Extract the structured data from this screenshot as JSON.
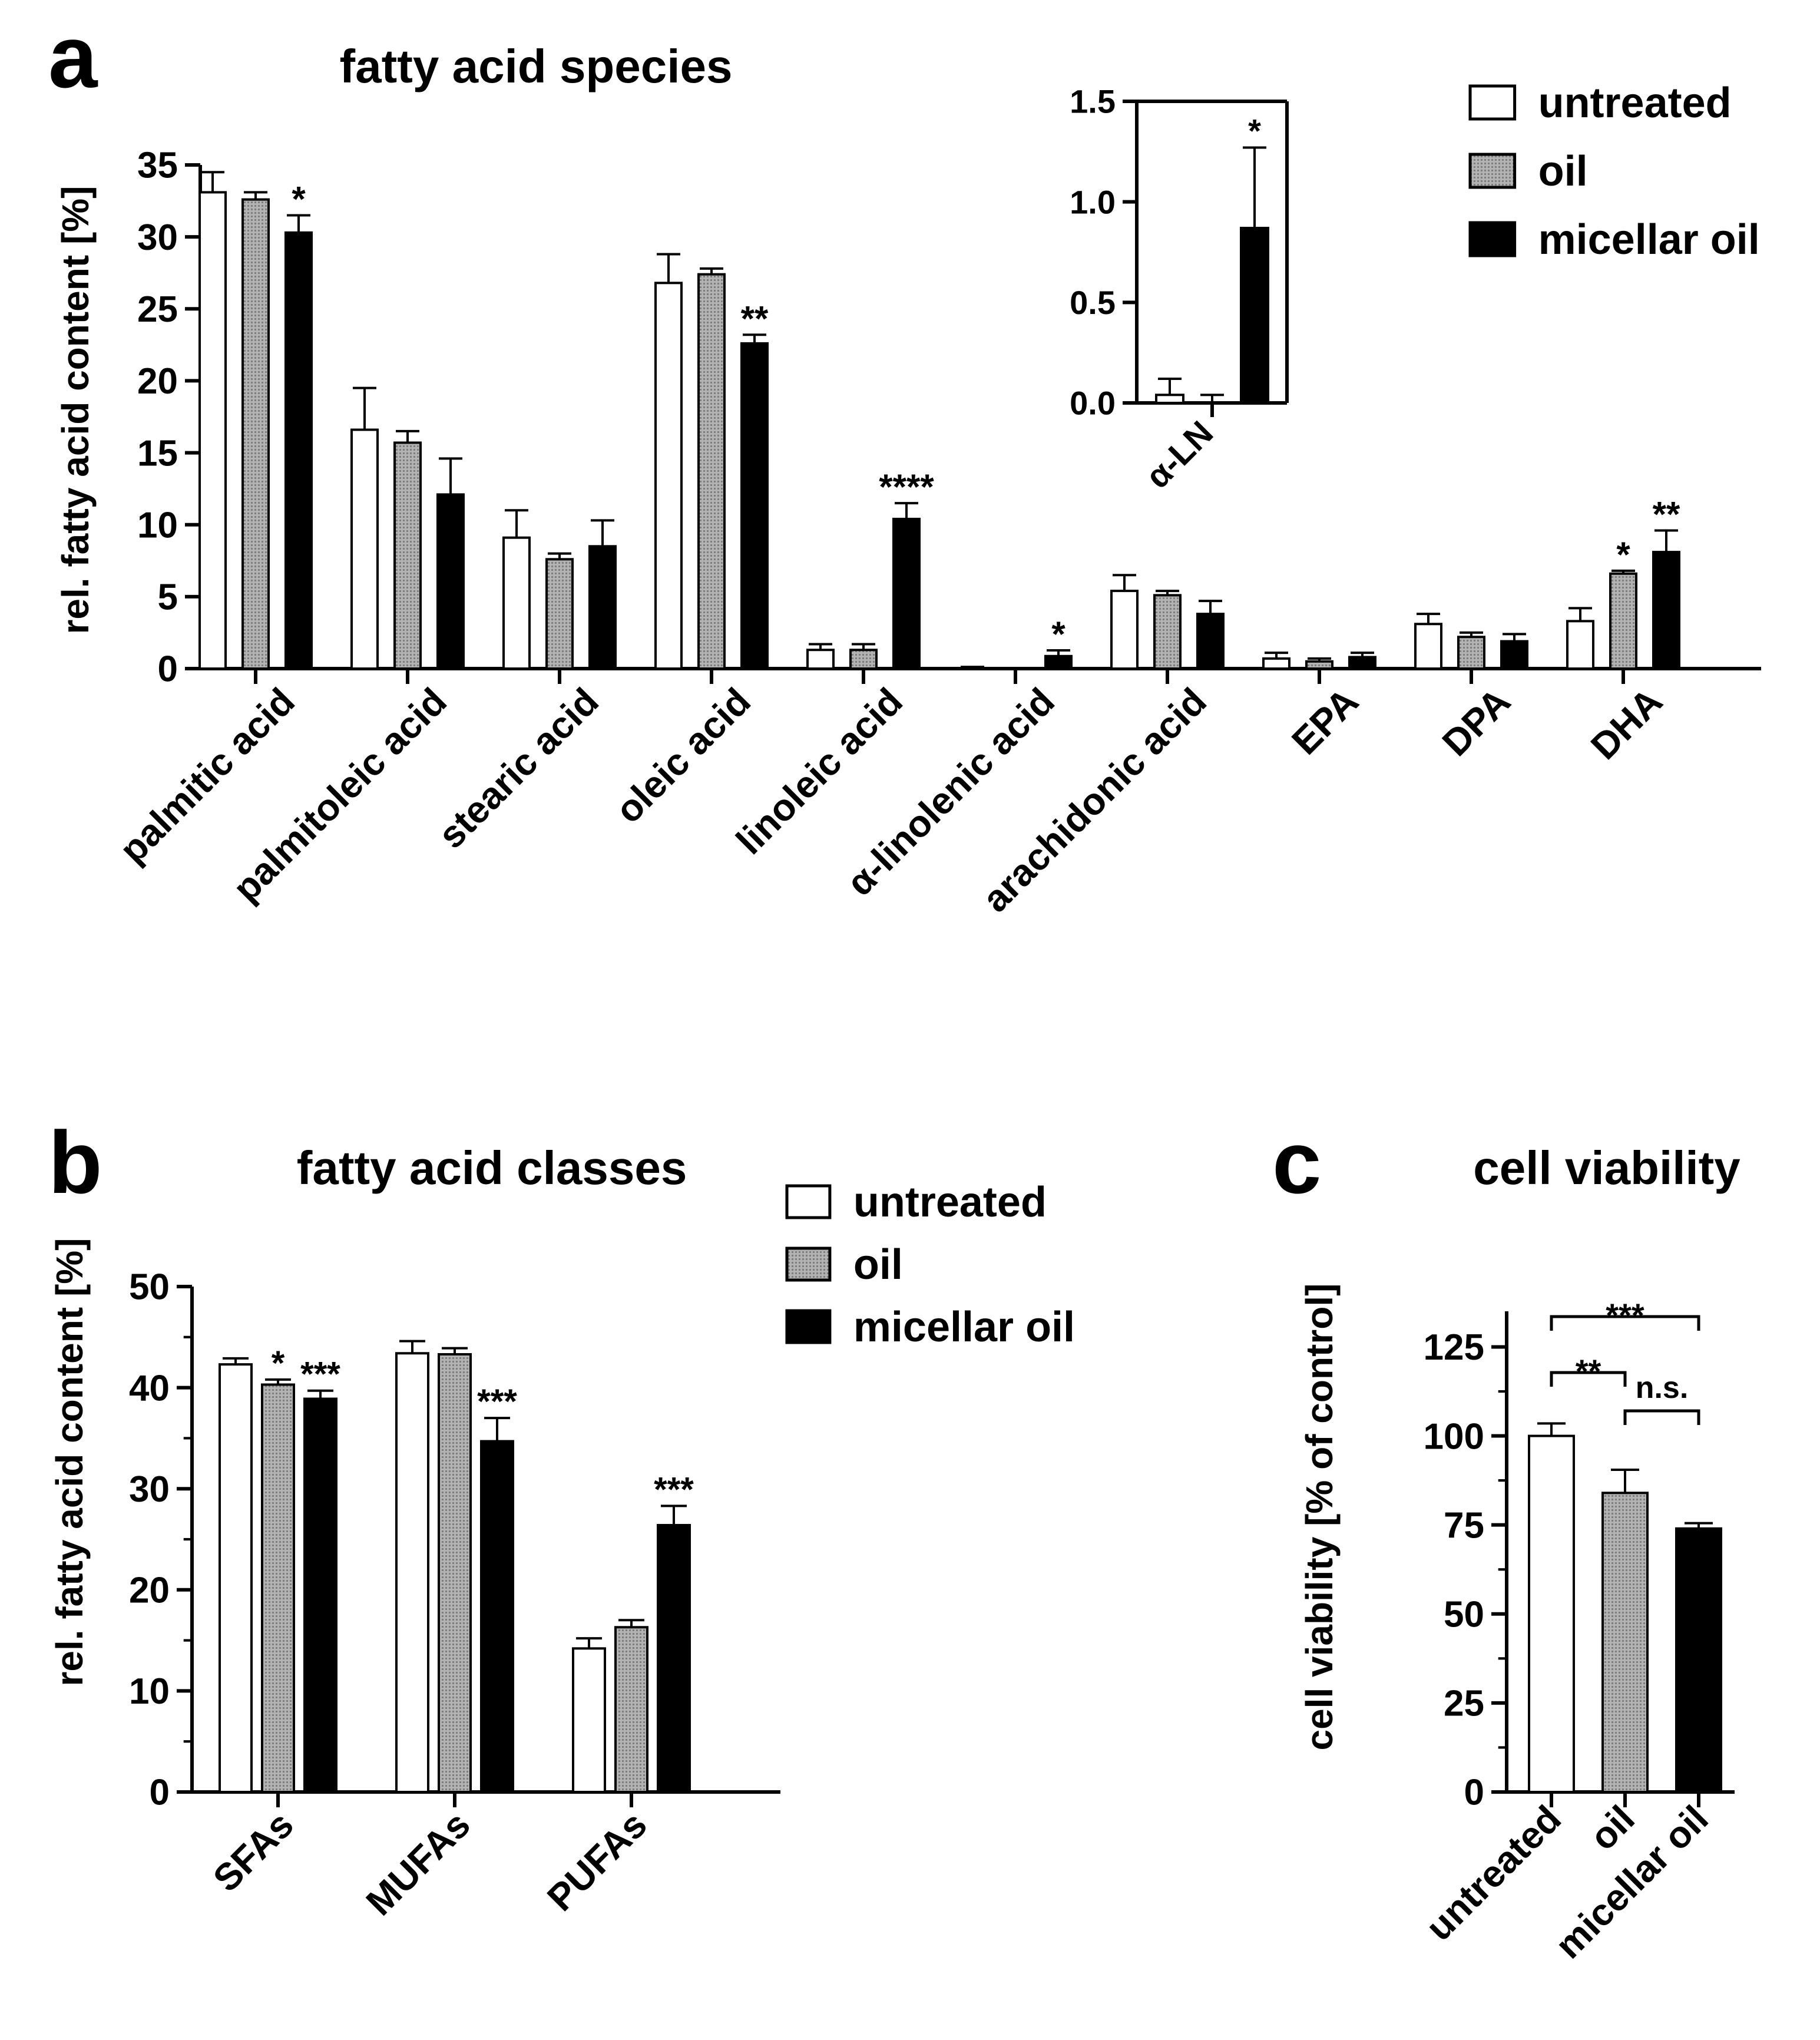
{
  "series_names": [
    "untreated",
    "oil",
    "micellar oil"
  ],
  "colors": {
    "untreated": "#ffffff",
    "oil": "#b3b3b3",
    "micellar": "#000000"
  },
  "chart_data": [
    {
      "id": "a",
      "panel_label": "a",
      "type": "bar",
      "title": "fatty acid species",
      "ylabel": "rel. fatty acid content [%]",
      "ylim": [
        0,
        35
      ],
      "yticks": [
        "0",
        "5",
        "10",
        "15",
        "20",
        "25",
        "30",
        "35"
      ],
      "categories": [
        "palmitic acid",
        "palmitoleic acid",
        "stearic acid",
        "oleic acid",
        "linoleic acid",
        "α-linolenic acid",
        "arachidonic acid",
        "EPA",
        "DPA",
        "DHA"
      ],
      "series": [
        {
          "name": "untreated",
          "values": [
            33.1,
            16.6,
            9.1,
            26.8,
            1.3,
            0.04,
            5.4,
            0.7,
            3.1,
            3.3
          ],
          "errors": [
            1.4,
            2.9,
            1.9,
            2.0,
            0.4,
            0.08,
            1.1,
            0.4,
            0.7,
            0.9
          ]
        },
        {
          "name": "oil",
          "values": [
            32.6,
            15.7,
            7.6,
            27.4,
            1.3,
            0.0,
            5.1,
            0.5,
            2.2,
            6.6
          ],
          "errors": [
            0.5,
            0.8,
            0.4,
            0.4,
            0.4,
            0.04,
            0.3,
            0.2,
            0.3,
            0.2
          ]
        },
        {
          "name": "micellar oil",
          "values": [
            30.3,
            12.1,
            8.5,
            22.6,
            10.4,
            0.87,
            3.8,
            0.8,
            1.9,
            8.1
          ],
          "errors": [
            1.2,
            2.5,
            1.8,
            0.6,
            1.1,
            0.4,
            0.9,
            0.3,
            0.5,
            1.5
          ]
        }
      ],
      "annotations": [
        {
          "text": "*",
          "category": 0,
          "series": 2
        },
        {
          "text": "**",
          "category": 3,
          "series": 2
        },
        {
          "text": "****",
          "category": 4,
          "series": 2
        },
        {
          "text": "*",
          "category": 5,
          "series": 2
        },
        {
          "text": "*",
          "category": 9,
          "series": 1
        },
        {
          "text": "**",
          "category": 9,
          "series": 2
        }
      ],
      "legend": [
        "untreated",
        "oil",
        "micellar oil"
      ],
      "legend_position": "top-right"
    },
    {
      "id": "inset",
      "type": "bar",
      "title": "",
      "ylim": [
        0,
        1.5
      ],
      "yticks": [
        "0.0",
        "0.5",
        "1.0",
        "1.5"
      ],
      "categories": [
        "α-LN"
      ],
      "series": [
        {
          "name": "untreated",
          "values": [
            0.04
          ],
          "errors": [
            0.08
          ]
        },
        {
          "name": "oil",
          "values": [
            0.0
          ],
          "errors": [
            0.04
          ]
        },
        {
          "name": "micellar oil",
          "values": [
            0.87
          ],
          "errors": [
            0.4
          ]
        }
      ],
      "annotations": [
        {
          "text": "*",
          "category": 0,
          "series": 2
        }
      ]
    },
    {
      "id": "b",
      "panel_label": "b",
      "type": "bar",
      "title": "fatty acid classes",
      "ylabel": "rel. fatty acid content [%]",
      "ylim": [
        0,
        50
      ],
      "yticks": [
        "0",
        "10",
        "20",
        "30",
        "40",
        "50"
      ],
      "categories": [
        "SFAs",
        "MUFAs",
        "PUFAs"
      ],
      "series": [
        {
          "name": "untreated",
          "values": [
            42.3,
            43.4,
            14.2
          ],
          "errors": [
            0.6,
            1.2,
            1.0
          ]
        },
        {
          "name": "oil",
          "values": [
            40.3,
            43.3,
            16.3
          ],
          "errors": [
            0.5,
            0.6,
            0.7
          ]
        },
        {
          "name": "micellar oil",
          "values": [
            38.9,
            34.7,
            26.4
          ],
          "errors": [
            0.8,
            2.3,
            1.9
          ]
        }
      ],
      "annotations": [
        {
          "text": "*",
          "category": 0,
          "series": 1
        },
        {
          "text": "***",
          "category": 0,
          "series": 2
        },
        {
          "text": "***",
          "category": 1,
          "series": 2
        },
        {
          "text": "***",
          "category": 2,
          "series": 2
        }
      ],
      "legend": [
        "untreated",
        "oil",
        "micellar oil"
      ],
      "legend_position": "top-right"
    },
    {
      "id": "c",
      "panel_label": "c",
      "type": "bar",
      "title": "cell viability",
      "ylabel": "cell viability [% of control]",
      "ylim": [
        0,
        135
      ],
      "yticks": [
        "0",
        "25",
        "50",
        "75",
        "100",
        "125"
      ],
      "categories": [
        "untreated",
        "oil",
        "micellar oil"
      ],
      "series": [
        {
          "name": "cell viability",
          "values": [
            100,
            84,
            74
          ],
          "errors": [
            3.5,
            6.5,
            1.5
          ]
        }
      ],
      "brackets": [
        {
          "text": "***",
          "from": 0,
          "to": 2
        },
        {
          "text": "**",
          "from": 0,
          "to": 1
        },
        {
          "text": "n.s.",
          "from": 1,
          "to": 2
        }
      ]
    }
  ]
}
